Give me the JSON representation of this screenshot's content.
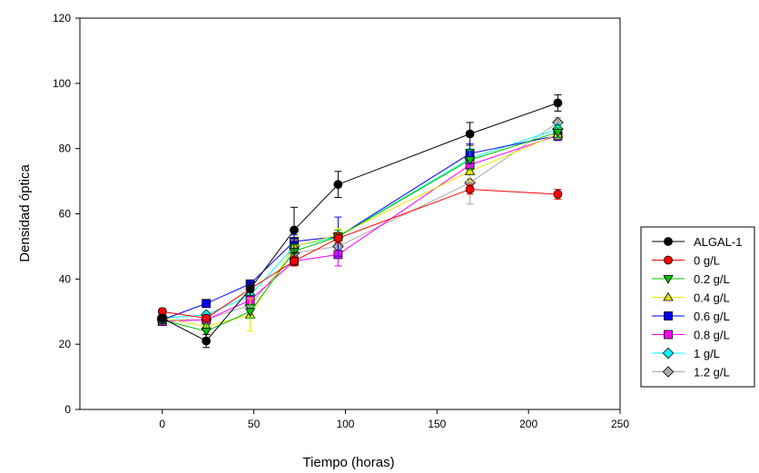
{
  "chart_data": {
    "type": "line",
    "title": "",
    "xlabel": "Tiempo (horas)",
    "ylabel": "Densidad óptica",
    "xlim": [
      -45,
      250
    ],
    "ylim": [
      0,
      120
    ],
    "xticks": [
      0,
      50,
      100,
      150,
      200,
      250
    ],
    "yticks": [
      0,
      20,
      40,
      60,
      80,
      100,
      120
    ],
    "grid": false,
    "legend_position": "right",
    "x": [
      0,
      24,
      48,
      72,
      96,
      168,
      216
    ],
    "series": [
      {
        "name": "ALGAL-1",
        "color": "#000000",
        "marker": "circle",
        "values": [
          28,
          21,
          37,
          55,
          69,
          84.5,
          94
        ],
        "errors": [
          1,
          2,
          2,
          7,
          4,
          3.5,
          2.5
        ]
      },
      {
        "name": "0 g/L",
        "color": "#ff0000",
        "marker": "circle",
        "values": [
          30,
          28,
          37,
          45.5,
          52.5,
          67.5,
          66
        ],
        "errors": [
          1,
          1,
          1,
          1.5,
          1.5,
          1.5,
          1.5
        ]
      },
      {
        "name": "0.2 g/L",
        "color": "#00c000",
        "marker": "triangle-down",
        "values": [
          27.5,
          24,
          30,
          48.5,
          53,
          76.5,
          85
        ],
        "errors": [
          1,
          2,
          2,
          2,
          2,
          3,
          1.5
        ]
      },
      {
        "name": "0.4 g/L",
        "color": "#e8e800",
        "marker": "triangle-up",
        "values": [
          28,
          25.5,
          29,
          50,
          53.5,
          73,
          84.5
        ],
        "errors": [
          1,
          2,
          5,
          2,
          2,
          3,
          1.5
        ]
      },
      {
        "name": "0.6 g/L",
        "color": "#0000ff",
        "marker": "square",
        "values": [
          27.5,
          32.5,
          38.5,
          51.5,
          53,
          78.5,
          84
        ],
        "errors": [
          1,
          1,
          1,
          2,
          6,
          3,
          1.5
        ]
      },
      {
        "name": "0.8 g/L",
        "color": "#ff00ff",
        "marker": "square",
        "values": [
          27,
          27.5,
          33.5,
          45.5,
          47.5,
          75,
          84
        ],
        "errors": [
          1,
          1,
          1,
          1.5,
          3.5,
          2.5,
          1.5
        ]
      },
      {
        "name": "1 g/L",
        "color": "#00ffff",
        "marker": "diamond",
        "values": [
          28,
          29,
          35,
          50,
          53,
          77,
          86
        ],
        "errors": [
          1,
          1,
          1,
          2,
          2,
          3,
          1.5
        ]
      },
      {
        "name": "1.2 g/L",
        "color": "#aaaaaa",
        "marker": "diamond",
        "values": [
          27.5,
          27.5,
          32,
          48,
          50,
          69.5,
          88
        ],
        "errors": [
          1,
          1,
          1,
          2,
          2,
          6.5,
          1.5
        ]
      }
    ]
  }
}
